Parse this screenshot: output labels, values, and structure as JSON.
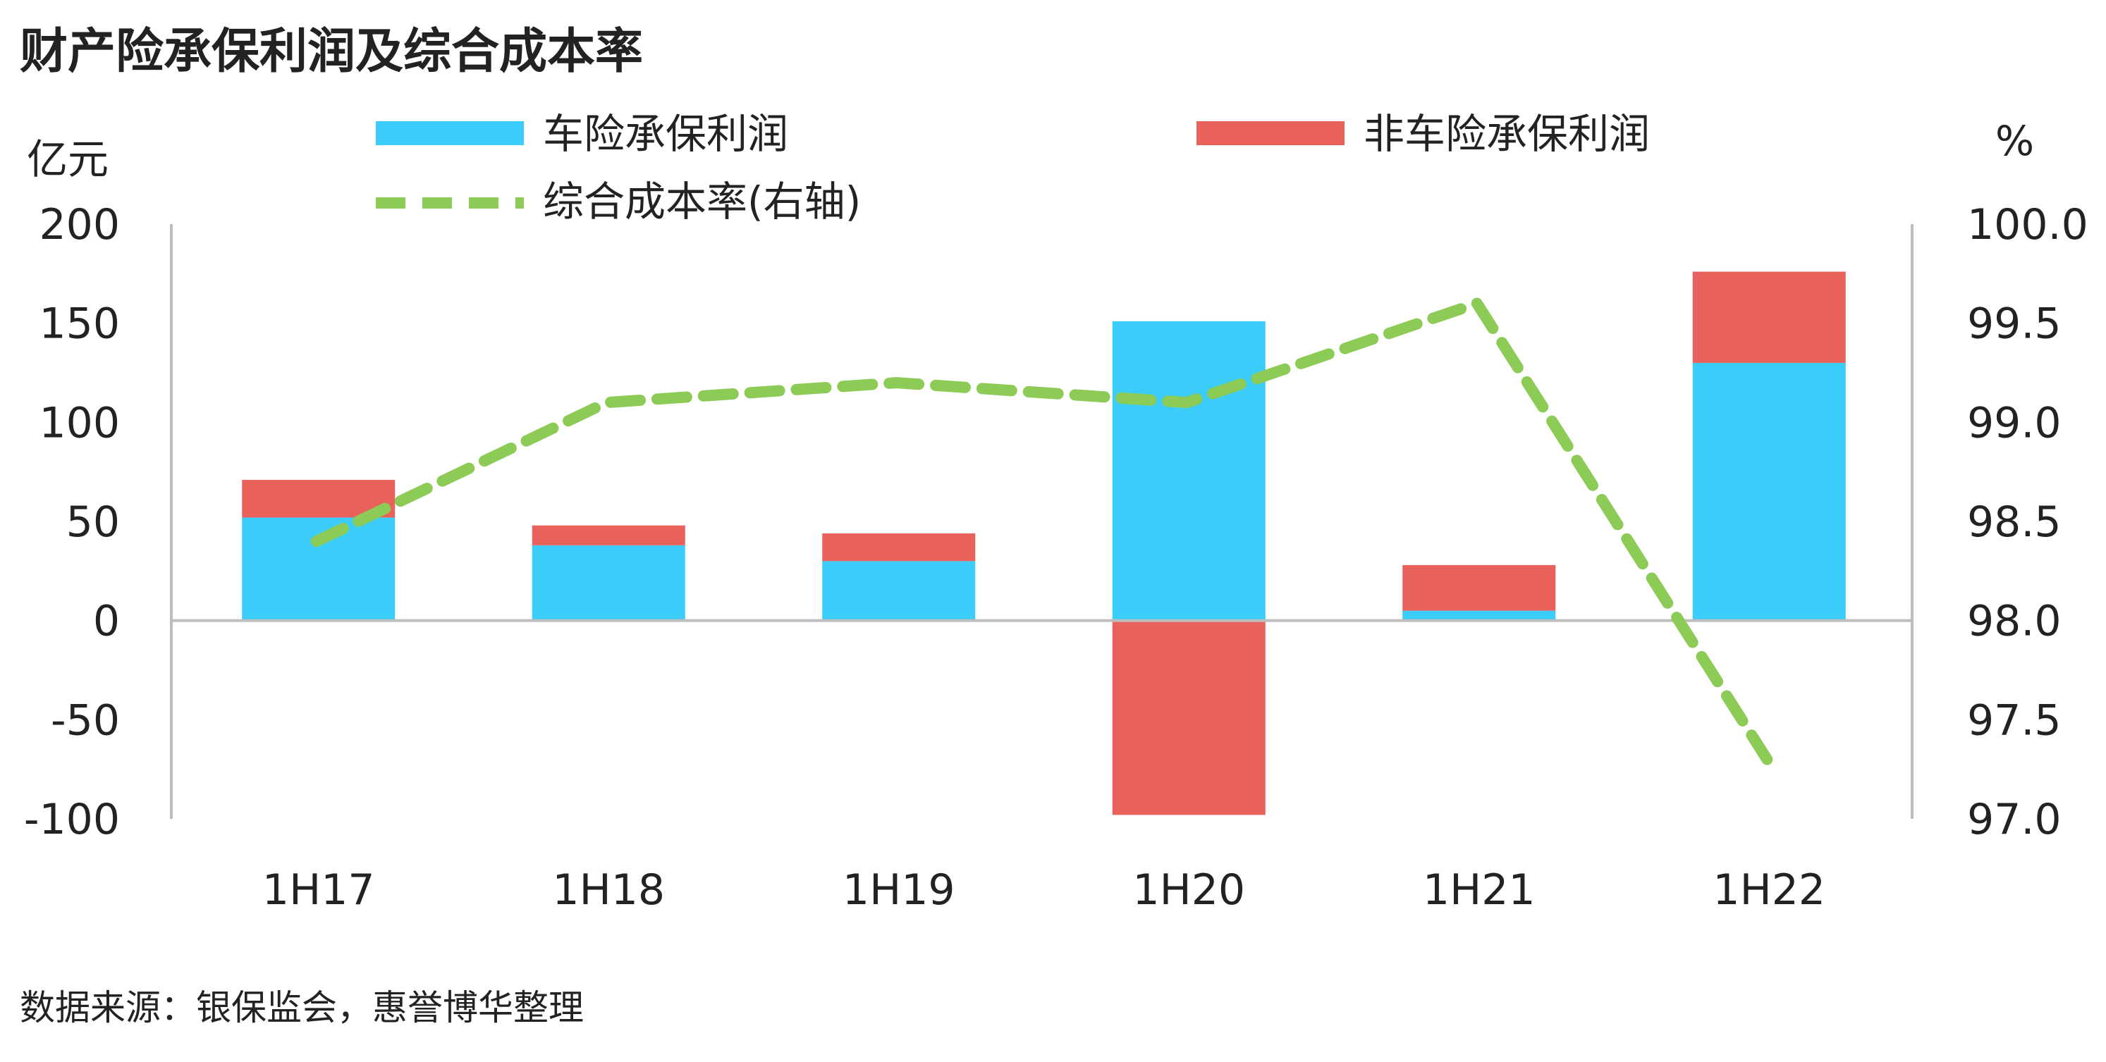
{
  "chart_data": {
    "type": "bar",
    "title": "财产险承保利润及综合成本率",
    "left_unit": "亿元",
    "right_unit": "%",
    "categories": [
      "1H17",
      "1H18",
      "1H19",
      "1H20",
      "1H21",
      "1H22"
    ],
    "stacked": true,
    "series": [
      {
        "name": "车险承保利润",
        "type": "bar",
        "axis": "left",
        "color": "#3CCCFA",
        "values": [
          52,
          38,
          30,
          151,
          5,
          130
        ]
      },
      {
        "name": "非车险承保利润",
        "type": "bar",
        "axis": "left",
        "color": "#E8615B",
        "values": [
          19,
          10,
          14,
          -98,
          23,
          46
        ]
      },
      {
        "name": "综合成本率(右轴)",
        "type": "line",
        "axis": "right",
        "color": "#8BCB56",
        "line_style": "dashed",
        "values": [
          98.4,
          99.1,
          99.2,
          99.1,
          99.6,
          97.3
        ]
      }
    ],
    "left_axis": {
      "min": -100,
      "max": 200,
      "ticks": [
        "200",
        "150",
        "100",
        "50",
        "0",
        "-50",
        "-100"
      ]
    },
    "right_axis": {
      "min": 97.0,
      "max": 100.0,
      "ticks": [
        "100.0",
        "99.5",
        "99.0",
        "98.5",
        "98.0",
        "97.5",
        "97.0"
      ]
    },
    "grid": false,
    "legend_position": "top"
  },
  "source": "数据来源：银保监会，惠誉博华整理"
}
